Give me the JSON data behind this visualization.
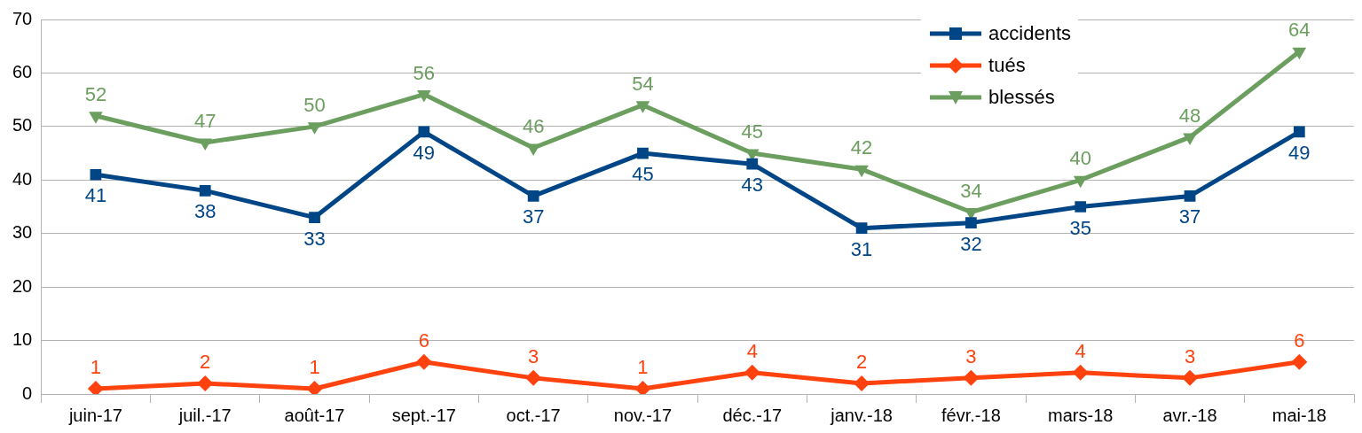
{
  "chart_data": {
    "type": "line",
    "categories": [
      "juin-17",
      "juil.-17",
      "août-17",
      "sept.-17",
      "oct.-17",
      "nov.-17",
      "déc.-17",
      "janv.-18",
      "févr.-18",
      "mars-18",
      "avr.-18",
      "mai-18"
    ],
    "series": [
      {
        "name": "accidents",
        "color": "#004586",
        "marker": "square",
        "values": [
          41,
          38,
          33,
          49,
          37,
          45,
          43,
          31,
          32,
          35,
          37,
          49
        ]
      },
      {
        "name": "tués",
        "color": "#ff420e",
        "marker": "diamond",
        "values": [
          1,
          2,
          1,
          6,
          3,
          1,
          4,
          2,
          3,
          4,
          3,
          6
        ]
      },
      {
        "name": "blessés",
        "color": "#6b9e5f",
        "marker": "triangle",
        "values": [
          52,
          47,
          50,
          56,
          46,
          54,
          45,
          42,
          34,
          40,
          48,
          64
        ]
      }
    ],
    "ylim": [
      0,
      70
    ],
    "yticks": [
      0,
      10,
      20,
      30,
      40,
      50,
      60,
      70
    ],
    "grid": "y",
    "legend": "top right",
    "data_labels": true,
    "line_style": "solid"
  }
}
